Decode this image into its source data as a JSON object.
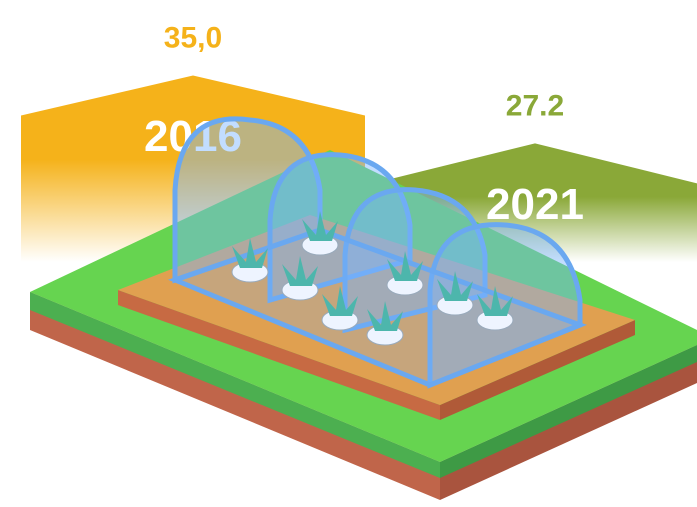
{
  "chart_data": {
    "type": "bar",
    "categories": [
      "2016",
      "2021"
    ],
    "values": [
      35,
      27.2
    ],
    "value_labels": [
      "35,0",
      "27.2"
    ],
    "colors": [
      "#f5b21a",
      "#8aa838"
    ]
  }
}
